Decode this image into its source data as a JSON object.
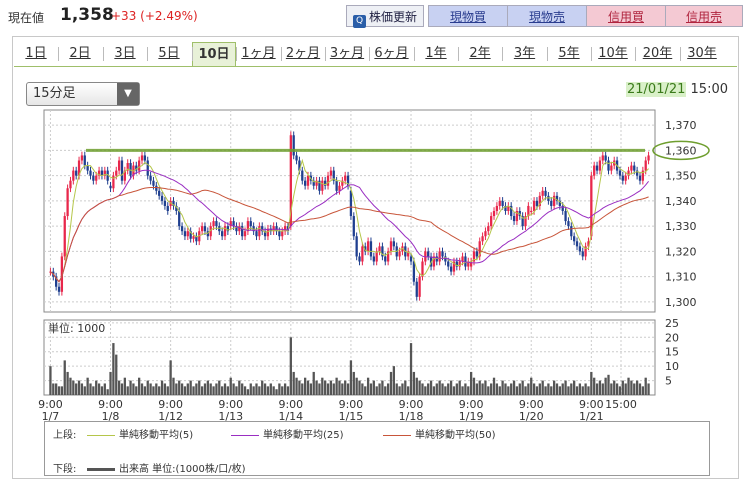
{
  "header": {
    "price_label": "現在値",
    "price": "1,358",
    "change": "+33 (+2.49%)",
    "update_button": "株価更新",
    "buttons": [
      "現物買",
      "現物売",
      "信用買",
      "信用売"
    ]
  },
  "tabs": [
    "1日",
    "2日",
    "3日",
    "5日",
    "10日",
    "1ヶ月",
    "2ヶ月",
    "3ヶ月",
    "6ヶ月",
    "1年",
    "2年",
    "3年",
    "5年",
    "10年",
    "20年",
    "30年"
  ],
  "selected_tab": "10日",
  "interval_select": "15分足",
  "datetime": {
    "date": "21/01/21",
    "time": "15:00"
  },
  "colors": {
    "up": "#e8274b",
    "down": "#1f3f8f",
    "ma5": "#b5c64a",
    "ma25": "#9a2ec2",
    "ma50": "#c8553a",
    "target_line": "#6e9e2e"
  },
  "chart_data": {
    "type": "candlestick",
    "price_axis": {
      "ticks": [
        1300,
        1310,
        1320,
        1330,
        1340,
        1350,
        1360,
        1370
      ],
      "ylim": [
        1296,
        1376
      ],
      "highlight": 1360
    },
    "volume_axis": {
      "label": "単位: 1000",
      "ticks": [
        5,
        10,
        15,
        20,
        25
      ],
      "ylim": [
        0,
        26
      ]
    },
    "x_labels": [
      {
        "time": "9:00",
        "date": "1/7"
      },
      {
        "time": "9:00",
        "date": "1/8"
      },
      {
        "time": "9:00",
        "date": "1/12"
      },
      {
        "time": "9:00",
        "date": "1/13"
      },
      {
        "time": "9:00",
        "date": "1/14"
      },
      {
        "time": "9:00",
        "date": "1/15"
      },
      {
        "time": "9:00",
        "date": "1/18"
      },
      {
        "time": "9:00",
        "date": "1/19"
      },
      {
        "time": "9:00",
        "date": "1/20"
      },
      {
        "time": "9:00",
        "date": "1/21"
      },
      {
        "time": "15:00",
        "date": ""
      }
    ],
    "day_closes": [
      [
        1312,
        1310,
        1306,
        1304,
        1318,
        1334,
        1345,
        1348,
        1352,
        1350,
        1356,
        1358,
        1354,
        1352,
        1350,
        1348,
        1350,
        1352,
        1350,
        1352,
        1348
      ],
      [
        1345,
        1350,
        1352,
        1356,
        1348,
        1352,
        1355,
        1350,
        1354,
        1352,
        1356,
        1358,
        1356,
        1350,
        1348,
        1346,
        1344,
        1342,
        1340,
        1338,
        1336
      ],
      [
        1340,
        1338,
        1336,
        1330,
        1328,
        1326,
        1328,
        1325,
        1326,
        1324,
        1328,
        1330,
        1328,
        1326,
        1330,
        1332,
        1330,
        1328,
        1326,
        1330,
        1328
      ],
      [
        1332,
        1330,
        1328,
        1330,
        1326,
        1328,
        1332,
        1330,
        1328,
        1326,
        1330,
        1328,
        1326,
        1329,
        1328,
        1330,
        1328,
        1326,
        1328,
        1330,
        1328
      ],
      [
        1366,
        1358,
        1356,
        1352,
        1348,
        1346,
        1350,
        1348,
        1346,
        1348,
        1344,
        1348,
        1346,
        1350,
        1352,
        1348,
        1344,
        1346,
        1348,
        1350,
        1346
      ],
      [
        1334,
        1326,
        1318,
        1316,
        1322,
        1320,
        1324,
        1318,
        1316,
        1320,
        1322,
        1318,
        1316,
        1320,
        1324,
        1322,
        1318,
        1320,
        1322,
        1318,
        1320
      ],
      [
        1316,
        1308,
        1302,
        1310,
        1316,
        1320,
        1318,
        1314,
        1318,
        1316,
        1320,
        1318,
        1316,
        1314,
        1312,
        1316,
        1314,
        1316,
        1318,
        1314,
        1316
      ],
      [
        1316,
        1320,
        1318,
        1324,
        1326,
        1328,
        1330,
        1334,
        1336,
        1338,
        1340,
        1338,
        1336,
        1338,
        1334,
        1332,
        1336,
        1334,
        1330,
        1334,
        1338
      ],
      [
        1336,
        1340,
        1338,
        1342,
        1344,
        1342,
        1340,
        1338,
        1342,
        1340,
        1338,
        1336,
        1332,
        1330,
        1326,
        1324,
        1322,
        1320,
        1318,
        1322,
        1324
      ],
      [
        1350,
        1354,
        1352,
        1356,
        1358,
        1356,
        1352,
        1354,
        1356,
        1352,
        1350,
        1348,
        1350,
        1352,
        1354,
        1352,
        1350,
        1348,
        1352,
        1356,
        1358
      ]
    ],
    "volumes": [
      [
        10,
        4,
        4,
        3,
        3,
        12,
        8,
        6,
        5,
        4,
        5,
        4,
        3,
        6,
        4,
        3,
        5,
        4,
        3,
        4,
        2
      ],
      [
        8,
        18,
        14,
        5,
        4,
        6,
        3,
        5,
        4,
        3,
        6,
        4,
        3,
        5,
        4,
        3,
        4,
        3,
        5,
        4,
        3
      ],
      [
        12,
        6,
        4,
        5,
        4,
        3,
        4,
        5,
        3,
        4,
        5,
        3,
        4,
        5,
        4,
        3,
        4,
        5,
        3,
        4,
        3
      ],
      [
        6,
        4,
        3,
        5,
        4,
        3,
        2,
        4,
        3,
        4,
        3,
        5,
        4,
        3,
        4,
        3,
        2,
        4,
        3,
        4,
        3
      ],
      [
        20,
        8,
        6,
        5,
        4,
        6,
        5,
        4,
        8,
        5,
        4,
        6,
        5,
        4,
        5,
        4,
        6,
        5,
        4,
        5,
        4
      ],
      [
        12,
        8,
        6,
        5,
        4,
        3,
        6,
        4,
        5,
        3,
        4,
        5,
        3,
        4,
        8,
        10,
        4,
        3,
        4,
        5,
        3
      ],
      [
        18,
        8,
        6,
        5,
        4,
        3,
        4,
        5,
        3,
        4,
        5,
        4,
        3,
        4,
        5,
        3,
        4,
        5,
        3,
        4,
        3
      ],
      [
        8,
        6,
        4,
        5,
        4,
        5,
        3,
        4,
        6,
        4,
        3,
        5,
        4,
        3,
        4,
        5,
        3,
        4,
        5,
        3,
        4
      ],
      [
        6,
        4,
        3,
        4,
        5,
        3,
        4,
        3,
        5,
        4,
        3,
        4,
        5,
        3,
        4,
        5,
        3,
        4,
        3,
        4,
        3
      ],
      [
        8,
        6,
        4,
        5,
        4,
        6,
        7,
        4,
        5,
        4,
        3,
        5,
        4,
        6,
        5,
        4,
        5,
        4,
        3,
        6,
        4
      ]
    ]
  },
  "legend": {
    "upper_label": "上段:",
    "lower_label": "下段:",
    "ma5": "単純移動平均(5)",
    "ma25": "単純移動平均(25)",
    "ma50": "単純移動平均(50)",
    "volume": "出来高 単位:(1000株/口/枚)"
  }
}
